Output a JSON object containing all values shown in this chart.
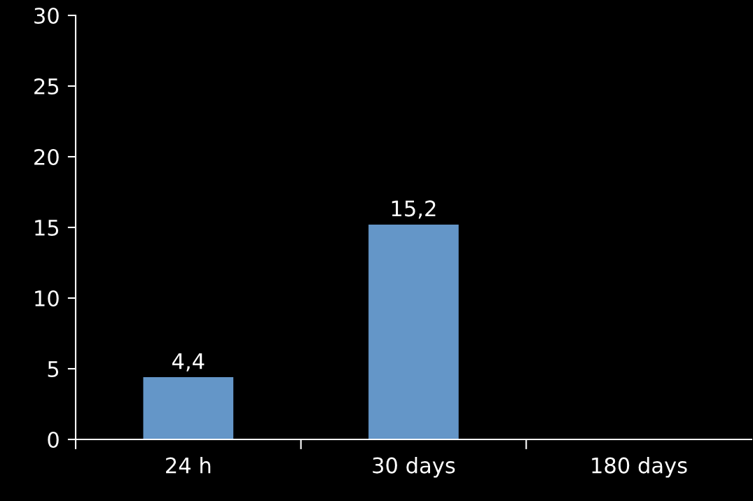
{
  "chart_data": {
    "type": "bar",
    "categories": [
      "24 h",
      "30 days",
      "180 days"
    ],
    "values": [
      4.4,
      15.2,
      null
    ],
    "value_labels": [
      "4,4",
      "15,2",
      null
    ],
    "color": "#6496c8",
    "ylim": [
      0,
      30
    ],
    "yticks": [
      0,
      5,
      10,
      15,
      20,
      25,
      30
    ],
    "grid": false
  }
}
